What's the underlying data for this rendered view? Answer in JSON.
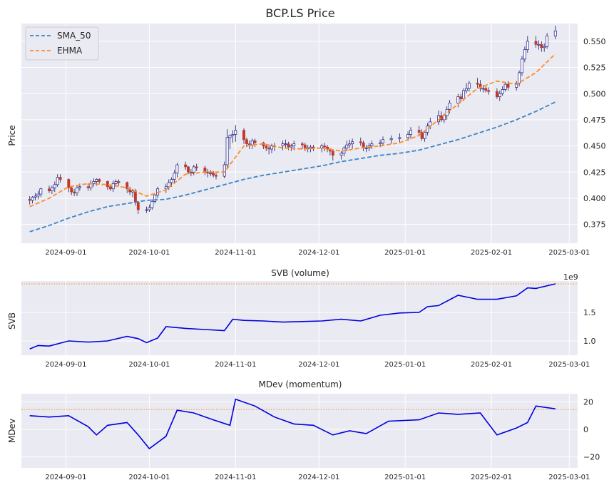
{
  "chart_data": [
    {
      "type": "candlestick",
      "title": "BCP.LS Price",
      "ylabel": "Price",
      "ylim": [
        0.357,
        0.567
      ],
      "yticks": [
        "0.375",
        "0.400",
        "0.425",
        "0.450",
        "0.475",
        "0.500",
        "0.525",
        "0.550"
      ],
      "xticks": [
        "2024-09-01",
        "2024-10-01",
        "2024-11-01",
        "2024-12-01",
        "2025-01-01",
        "2025-02-01",
        "2025-03-01"
      ],
      "x_range": [
        "2024-08-16",
        "2025-03-04"
      ],
      "legend": {
        "position": "upper-left",
        "entries": [
          "SMA_50",
          "EHMA"
        ]
      },
      "grid": true,
      "colors": {
        "up": "#1a1a8c",
        "down": "#c0392b",
        "sma": "#3a86c8",
        "ehma": "#ff8c2a"
      },
      "ohlc": {
        "dates": [
          "2024-08-19",
          "2024-08-20",
          "2024-08-21",
          "2024-08-22",
          "2024-08-23",
          "2024-08-26",
          "2024-08-27",
          "2024-08-28",
          "2024-08-29",
          "2024-08-30",
          "2024-09-02",
          "2024-09-03",
          "2024-09-04",
          "2024-09-05",
          "2024-09-06",
          "2024-09-09",
          "2024-09-10",
          "2024-09-11",
          "2024-09-12",
          "2024-09-13",
          "2024-09-16",
          "2024-09-17",
          "2024-09-18",
          "2024-09-19",
          "2024-09-20",
          "2024-09-23",
          "2024-09-24",
          "2024-09-25",
          "2024-09-26",
          "2024-09-27",
          "2024-09-30",
          "2024-10-01",
          "2024-10-02",
          "2024-10-03",
          "2024-10-04",
          "2024-10-07",
          "2024-10-08",
          "2024-10-09",
          "2024-10-10",
          "2024-10-11",
          "2024-10-14",
          "2024-10-15",
          "2024-10-16",
          "2024-10-17",
          "2024-10-18",
          "2024-10-21",
          "2024-10-22",
          "2024-10-23",
          "2024-10-24",
          "2024-10-25",
          "2024-10-28",
          "2024-10-29",
          "2024-10-30",
          "2024-10-31",
          "2024-11-01",
          "2024-11-04",
          "2024-11-05",
          "2024-11-06",
          "2024-11-07",
          "2024-11-08",
          "2024-11-11",
          "2024-11-12",
          "2024-11-13",
          "2024-11-14",
          "2024-11-15",
          "2024-11-18",
          "2024-11-19",
          "2024-11-20",
          "2024-11-21",
          "2024-11-22",
          "2024-11-25",
          "2024-11-26",
          "2024-11-27",
          "2024-11-28",
          "2024-11-29",
          "2024-12-02",
          "2024-12-03",
          "2024-12-04",
          "2024-12-05",
          "2024-12-06",
          "2024-12-09",
          "2024-12-10",
          "2024-12-11",
          "2024-12-12",
          "2024-12-13",
          "2024-12-16",
          "2024-12-17",
          "2024-12-18",
          "2024-12-19",
          "2024-12-20",
          "2024-12-23",
          "2024-12-24",
          "2024-12-27",
          "2024-12-30",
          "2025-01-02",
          "2025-01-03",
          "2025-01-06",
          "2025-01-07",
          "2025-01-08",
          "2025-01-09",
          "2025-01-10",
          "2025-01-13",
          "2025-01-14",
          "2025-01-15",
          "2025-01-16",
          "2025-01-17",
          "2025-01-20",
          "2025-01-21",
          "2025-01-22",
          "2025-01-23",
          "2025-01-24",
          "2025-01-27",
          "2025-01-28",
          "2025-01-29",
          "2025-01-30",
          "2025-01-31",
          "2025-02-03",
          "2025-02-04",
          "2025-02-05",
          "2025-02-06",
          "2025-02-07",
          "2025-02-10",
          "2025-02-11",
          "2025-02-12",
          "2025-02-13",
          "2025-02-14",
          "2025-02-17",
          "2025-02-18",
          "2025-02-19",
          "2025-02-20",
          "2025-02-21",
          "2025-02-24"
        ],
        "open": [
          0.399,
          0.398,
          0.401,
          0.402,
          0.404,
          0.409,
          0.407,
          0.41,
          0.413,
          0.42,
          0.418,
          0.41,
          0.406,
          0.405,
          0.41,
          0.411,
          0.41,
          0.414,
          0.416,
          0.418,
          0.416,
          0.411,
          0.409,
          0.414,
          0.416,
          0.415,
          0.409,
          0.406,
          0.407,
          0.396,
          0.389,
          0.389,
          0.391,
          0.397,
          0.403,
          0.409,
          0.411,
          0.415,
          0.418,
          0.424,
          0.432,
          0.43,
          0.425,
          0.425,
          0.43,
          0.429,
          0.425,
          0.424,
          0.424,
          0.422,
          0.421,
          0.432,
          0.458,
          0.46,
          0.461,
          0.465,
          0.456,
          0.452,
          0.451,
          0.455,
          0.453,
          0.45,
          0.448,
          0.447,
          0.45,
          0.45,
          0.452,
          0.452,
          0.449,
          0.45,
          0.452,
          0.451,
          0.448,
          0.448,
          0.449,
          0.448,
          0.45,
          0.449,
          0.447,
          0.445,
          0.441,
          0.443,
          0.448,
          0.451,
          0.452,
          0.454,
          0.453,
          0.448,
          0.448,
          0.45,
          0.452,
          0.453,
          0.456,
          0.457,
          0.458,
          0.461,
          0.465,
          0.463,
          0.457,
          0.463,
          0.469,
          0.473,
          0.479,
          0.475,
          0.479,
          0.485,
          0.491,
          0.497,
          0.495,
          0.503,
          0.505,
          0.51,
          0.509,
          0.505,
          0.505,
          0.503,
          0.502,
          0.497,
          0.5,
          0.504,
          0.509,
          0.506,
          0.51,
          0.52,
          0.533,
          0.542,
          0.55,
          0.547,
          0.547,
          0.544,
          0.545,
          0.555
        ],
        "high": [
          0.402,
          0.402,
          0.405,
          0.407,
          0.41,
          0.412,
          0.412,
          0.416,
          0.423,
          0.423,
          0.419,
          0.412,
          0.409,
          0.412,
          0.414,
          0.414,
          0.417,
          0.419,
          0.419,
          0.419,
          0.417,
          0.413,
          0.417,
          0.418,
          0.418,
          0.416,
          0.411,
          0.409,
          0.409,
          0.397,
          0.392,
          0.394,
          0.399,
          0.404,
          0.411,
          0.414,
          0.418,
          0.42,
          0.427,
          0.434,
          0.435,
          0.431,
          0.428,
          0.432,
          0.433,
          0.431,
          0.428,
          0.427,
          0.426,
          0.424,
          0.435,
          0.466,
          0.461,
          0.465,
          0.47,
          0.467,
          0.458,
          0.455,
          0.457,
          0.457,
          0.454,
          0.452,
          0.45,
          0.452,
          0.453,
          0.455,
          0.456,
          0.454,
          0.452,
          0.455,
          0.454,
          0.453,
          0.451,
          0.451,
          0.451,
          0.452,
          0.453,
          0.451,
          0.448,
          0.446,
          0.445,
          0.45,
          0.455,
          0.456,
          0.457,
          0.458,
          0.455,
          0.451,
          0.453,
          0.455,
          0.456,
          0.459,
          0.46,
          0.462,
          0.464,
          0.468,
          0.469,
          0.466,
          0.464,
          0.472,
          0.477,
          0.484,
          0.483,
          0.481,
          0.488,
          0.494,
          0.5,
          0.5,
          0.505,
          0.51,
          0.512,
          0.515,
          0.513,
          0.508,
          0.507,
          0.506,
          0.505,
          0.503,
          0.507,
          0.511,
          0.512,
          0.512,
          0.522,
          0.536,
          0.545,
          0.555,
          0.555,
          0.551,
          0.55,
          0.548,
          0.558,
          0.565
        ],
        "low": [
          0.394,
          0.395,
          0.398,
          0.399,
          0.401,
          0.405,
          0.404,
          0.406,
          0.411,
          0.415,
          0.406,
          0.403,
          0.402,
          0.402,
          0.407,
          0.407,
          0.407,
          0.411,
          0.412,
          0.414,
          0.408,
          0.407,
          0.406,
          0.411,
          0.412,
          0.405,
          0.403,
          0.401,
          0.393,
          0.385,
          0.386,
          0.387,
          0.389,
          0.395,
          0.4,
          0.405,
          0.408,
          0.411,
          0.415,
          0.42,
          0.427,
          0.423,
          0.421,
          0.422,
          0.426,
          0.422,
          0.42,
          0.421,
          0.42,
          0.418,
          0.419,
          0.428,
          0.447,
          0.453,
          0.454,
          0.452,
          0.449,
          0.447,
          0.447,
          0.449,
          0.447,
          0.445,
          0.442,
          0.443,
          0.445,
          0.446,
          0.448,
          0.446,
          0.445,
          0.446,
          0.447,
          0.445,
          0.444,
          0.444,
          0.445,
          0.444,
          0.445,
          0.444,
          0.441,
          0.436,
          0.437,
          0.44,
          0.445,
          0.448,
          0.447,
          0.45,
          0.445,
          0.444,
          0.445,
          0.447,
          0.449,
          0.45,
          0.452,
          0.453,
          0.455,
          0.457,
          0.46,
          0.455,
          0.454,
          0.46,
          0.466,
          0.47,
          0.473,
          0.472,
          0.475,
          0.481,
          0.487,
          0.492,
          0.493,
          0.5,
          0.502,
          0.505,
          0.502,
          0.501,
          0.501,
          0.499,
          0.495,
          0.493,
          0.498,
          0.502,
          0.503,
          0.503,
          0.507,
          0.517,
          0.53,
          0.539,
          0.544,
          0.542,
          0.54,
          0.54,
          0.543,
          0.552
        ],
        "close": [
          0.398,
          0.401,
          0.402,
          0.404,
          0.409,
          0.407,
          0.41,
          0.413,
          0.42,
          0.418,
          0.41,
          0.406,
          0.405,
          0.41,
          0.411,
          0.41,
          0.414,
          0.416,
          0.418,
          0.416,
          0.411,
          0.409,
          0.414,
          0.416,
          0.415,
          0.409,
          0.406,
          0.407,
          0.396,
          0.389,
          0.389,
          0.391,
          0.397,
          0.403,
          0.409,
          0.411,
          0.415,
          0.418,
          0.424,
          0.432,
          0.43,
          0.425,
          0.425,
          0.43,
          0.429,
          0.425,
          0.424,
          0.424,
          0.422,
          0.421,
          0.432,
          0.458,
          0.46,
          0.461,
          0.465,
          0.456,
          0.452,
          0.451,
          0.455,
          0.453,
          0.45,
          0.448,
          0.447,
          0.45,
          0.45,
          0.452,
          0.452,
          0.449,
          0.45,
          0.452,
          0.451,
          0.448,
          0.448,
          0.449,
          0.448,
          0.45,
          0.449,
          0.447,
          0.445,
          0.441,
          0.443,
          0.448,
          0.451,
          0.452,
          0.454,
          0.453,
          0.448,
          0.448,
          0.45,
          0.452,
          0.453,
          0.456,
          0.457,
          0.458,
          0.461,
          0.465,
          0.463,
          0.457,
          0.463,
          0.469,
          0.473,
          0.479,
          0.475,
          0.479,
          0.485,
          0.491,
          0.497,
          0.495,
          0.503,
          0.505,
          0.51,
          0.509,
          0.505,
          0.505,
          0.503,
          0.502,
          0.497,
          0.5,
          0.504,
          0.509,
          0.506,
          0.51,
          0.52,
          0.533,
          0.542,
          0.55,
          0.547,
          0.547,
          0.544,
          0.545,
          0.555,
          0.56
        ]
      },
      "series": [
        {
          "name": "SMA_50",
          "style": "dashed",
          "color": "#3a86c8",
          "x": [
            "2024-08-19",
            "2024-08-26",
            "2024-09-02",
            "2024-09-09",
            "2024-09-16",
            "2024-09-23",
            "2024-09-30",
            "2024-10-07",
            "2024-10-14",
            "2024-10-21",
            "2024-10-28",
            "2024-11-04",
            "2024-11-11",
            "2024-11-18",
            "2024-11-25",
            "2024-12-02",
            "2024-12-09",
            "2024-12-16",
            "2024-12-23",
            "2024-12-30",
            "2025-01-06",
            "2025-01-13",
            "2025-01-20",
            "2025-01-27",
            "2025-02-03",
            "2025-02-10",
            "2025-02-17",
            "2025-02-24"
          ],
          "values": [
            0.368,
            0.374,
            0.381,
            0.387,
            0.392,
            0.395,
            0.398,
            0.399,
            0.403,
            0.408,
            0.413,
            0.418,
            0.422,
            0.425,
            0.428,
            0.431,
            0.435,
            0.438,
            0.441,
            0.443,
            0.446,
            0.451,
            0.456,
            0.462,
            0.468,
            0.475,
            0.483,
            0.492
          ]
        },
        {
          "name": "EHMA",
          "style": "dashed",
          "color": "#ff8c2a",
          "x": [
            "2024-08-19",
            "2024-08-26",
            "2024-09-02",
            "2024-09-09",
            "2024-09-16",
            "2024-09-23",
            "2024-09-30",
            "2024-10-07",
            "2024-10-14",
            "2024-10-21",
            "2024-10-28",
            "2024-11-04",
            "2024-11-11",
            "2024-11-18",
            "2024-11-25",
            "2024-12-02",
            "2024-12-09",
            "2024-12-16",
            "2024-12-23",
            "2024-12-30",
            "2025-01-06",
            "2025-01-13",
            "2025-01-20",
            "2025-01-27",
            "2025-02-03",
            "2025-02-10",
            "2025-02-17",
            "2025-02-24"
          ],
          "values": [
            0.392,
            0.4,
            0.411,
            0.414,
            0.413,
            0.41,
            0.402,
            0.408,
            0.423,
            0.425,
            0.425,
            0.45,
            0.452,
            0.448,
            0.447,
            0.448,
            0.445,
            0.448,
            0.45,
            0.453,
            0.46,
            0.475,
            0.49,
            0.505,
            0.512,
            0.509,
            0.52,
            0.538
          ]
        }
      ]
    },
    {
      "type": "line",
      "title": "SVB (volume)",
      "ylabel": "SVB",
      "offset_text": "1e9",
      "ylim": [
        0.75,
        2.05
      ],
      "yticks": [
        "1.0",
        "1.5"
      ],
      "reference_line": {
        "value": 2.0,
        "color": "#ff8c2a",
        "style": "dotted"
      },
      "grid": true,
      "series": [
        {
          "name": "",
          "color": "#0000dd",
          "x": [
            "2024-08-19",
            "2024-08-22",
            "2024-08-26",
            "2024-09-02",
            "2024-09-09",
            "2024-09-16",
            "2024-09-23",
            "2024-09-27",
            "2024-09-30",
            "2024-10-04",
            "2024-10-07",
            "2024-10-14",
            "2024-10-21",
            "2024-10-28",
            "2024-10-31",
            "2024-11-04",
            "2024-11-11",
            "2024-11-18",
            "2024-11-25",
            "2024-12-02",
            "2024-12-09",
            "2024-12-16",
            "2024-12-23",
            "2024-12-30",
            "2025-01-06",
            "2025-01-09",
            "2025-01-13",
            "2025-01-20",
            "2025-01-27",
            "2025-02-03",
            "2025-02-10",
            "2025-02-14",
            "2025-02-17",
            "2025-02-24"
          ],
          "values": [
            0.86,
            0.92,
            0.91,
            1.0,
            0.98,
            1.0,
            1.08,
            1.04,
            0.97,
            1.05,
            1.25,
            1.22,
            1.2,
            1.18,
            1.38,
            1.36,
            1.35,
            1.33,
            1.34,
            1.35,
            1.38,
            1.35,
            1.45,
            1.49,
            1.5,
            1.6,
            1.62,
            1.8,
            1.73,
            1.73,
            1.79,
            1.93,
            1.92,
            2.0
          ]
        }
      ]
    },
    {
      "type": "line",
      "title": "MDev (momentum)",
      "ylabel": "MDev",
      "ylim": [
        -28,
        26
      ],
      "yticks": [
        "20",
        "0",
        "−20"
      ],
      "reference_line": {
        "value": 14.5,
        "color": "#ff8c2a",
        "style": "dotted"
      },
      "grid": true,
      "series": [
        {
          "name": "",
          "color": "#0000dd",
          "x": [
            "2024-08-19",
            "2024-08-26",
            "2024-09-02",
            "2024-09-09",
            "2024-09-12",
            "2024-09-16",
            "2024-09-23",
            "2024-09-27",
            "2024-10-01",
            "2024-10-07",
            "2024-10-11",
            "2024-10-17",
            "2024-10-24",
            "2024-10-30",
            "2024-11-01",
            "2024-11-08",
            "2024-11-15",
            "2024-11-22",
            "2024-11-29",
            "2024-12-06",
            "2024-12-12",
            "2024-12-18",
            "2024-12-26",
            "2025-01-06",
            "2025-01-13",
            "2025-01-20",
            "2025-01-28",
            "2025-02-03",
            "2025-02-10",
            "2025-02-14",
            "2025-02-17",
            "2025-02-24"
          ],
          "values": [
            10,
            9,
            10,
            2,
            -4,
            3,
            5,
            -4,
            -14,
            -5,
            14,
            12,
            7,
            3,
            22,
            17,
            9,
            4,
            3,
            -4,
            -1,
            -3,
            6,
            7,
            12,
            11,
            12,
            -4,
            1,
            5,
            17,
            15
          ]
        }
      ]
    }
  ]
}
